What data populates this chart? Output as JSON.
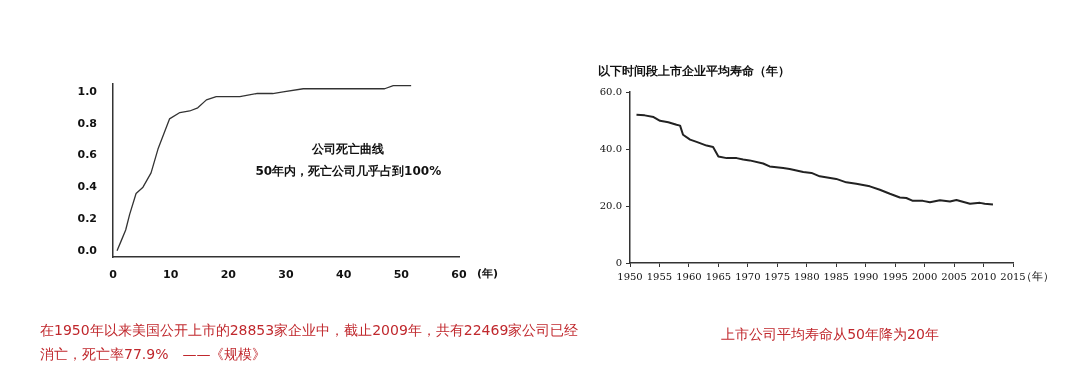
{
  "chart_data": [
    {
      "type": "line",
      "xlabel": "(年)",
      "annotations": [
        "公司死亡曲线",
        "50年内，死亡公司几乎占到100%",
        "在1950年以来美国公开上市的28853家企业中，截止2009年，共有22469家公司已经消亡，死亡率77.9%　——《规模》"
      ],
      "x": [
        0.7,
        1.4,
        2.2,
        2.9,
        4.0,
        5.2,
        6.6,
        7.8,
        9.8,
        11.6,
        13.3,
        14.7,
        16.2,
        17.9,
        22.0,
        24.9,
        27.7,
        29.5,
        33.0,
        41.0,
        42.2,
        47.1,
        48.6,
        51.7
      ],
      "series": [
        {
          "color": "#333333",
          "values": [
            0.0,
            0.06,
            0.13,
            0.23,
            0.36,
            0.4,
            0.49,
            0.64,
            0.83,
            0.87,
            0.88,
            0.9,
            0.95,
            0.97,
            0.97,
            0.99,
            0.99,
            1.0,
            1.02,
            1.02,
            1.02,
            1.02,
            1.04,
            1.04
          ]
        }
      ],
      "xlim": [
        0,
        60
      ],
      "ylim": [
        -0.04,
        1.05
      ],
      "xticks": [
        0,
        10,
        20,
        30,
        40,
        50,
        60
      ],
      "yticks": [
        {
          "value": 0,
          "label": "0.0"
        },
        {
          "value": 0.2,
          "label": "0.2"
        },
        {
          "value": 0.4,
          "label": "0.4"
        },
        {
          "value": 0.6,
          "label": "0.6"
        },
        {
          "value": 0.8,
          "label": "0.8"
        },
        {
          "value": 1,
          "label": "1.0"
        }
      ],
      "grid": false,
      "legend": false,
      "marker": "none",
      "line_style": "solid"
    },
    {
      "type": "line",
      "title": "以下时间段上市企业平均寿命（年）",
      "xlabel": "（年）",
      "annotations": [
        "上市公司平均寿命从50年降为20年"
      ],
      "x": [
        1951.1,
        1952.5,
        1954.0,
        1955.1,
        1956.5,
        1957.9,
        1958.5,
        1959.0,
        1960.2,
        1961.3,
        1963.0,
        1964.1,
        1965.0,
        1966.4,
        1968.1,
        1969.2,
        1970.3,
        1972.6,
        1973.7,
        1976.0,
        1977.1,
        1979.4,
        1980.8,
        1982.2,
        1985.0,
        1986.7,
        1988.4,
        1990.7,
        1992.4,
        1994.1,
        1995.8,
        1996.9,
        1998.0,
        1999.7,
        2000.9,
        2002.6,
        2004.3,
        2005.4,
        2007.7,
        2009.4,
        2010.2,
        2011.6
      ],
      "series": [
        {
          "color": "#222222",
          "values": [
            52.0,
            51.8,
            51.2,
            49.9,
            49.4,
            48.5,
            48.2,
            45.0,
            43.3,
            42.5,
            41.2,
            40.7,
            37.4,
            36.8,
            36.8,
            36.3,
            36.0,
            34.9,
            33.9,
            33.3,
            33.0,
            31.9,
            31.6,
            30.4,
            29.5,
            28.3,
            27.8,
            26.9,
            25.7,
            24.3,
            23.0,
            22.8,
            21.8,
            21.8,
            21.3,
            22.0,
            21.6,
            22.1,
            20.8,
            21.1,
            20.8,
            20.5
          ]
        }
      ],
      "xlim": [
        1950,
        2015
      ],
      "ylim": [
        0,
        60
      ],
      "xticks": [
        1950,
        1955,
        1960,
        1965,
        1970,
        1975,
        1980,
        1985,
        1990,
        1995,
        2000,
        2005,
        2010,
        2015
      ],
      "yticks": [
        0,
        {
          "value": 20,
          "label": "20.0"
        },
        {
          "value": 40,
          "label": "40.0"
        },
        {
          "value": 60,
          "label": "60.0"
        }
      ],
      "grid": false,
      "legend": false,
      "marker": "none",
      "line_style": "solid"
    }
  ]
}
